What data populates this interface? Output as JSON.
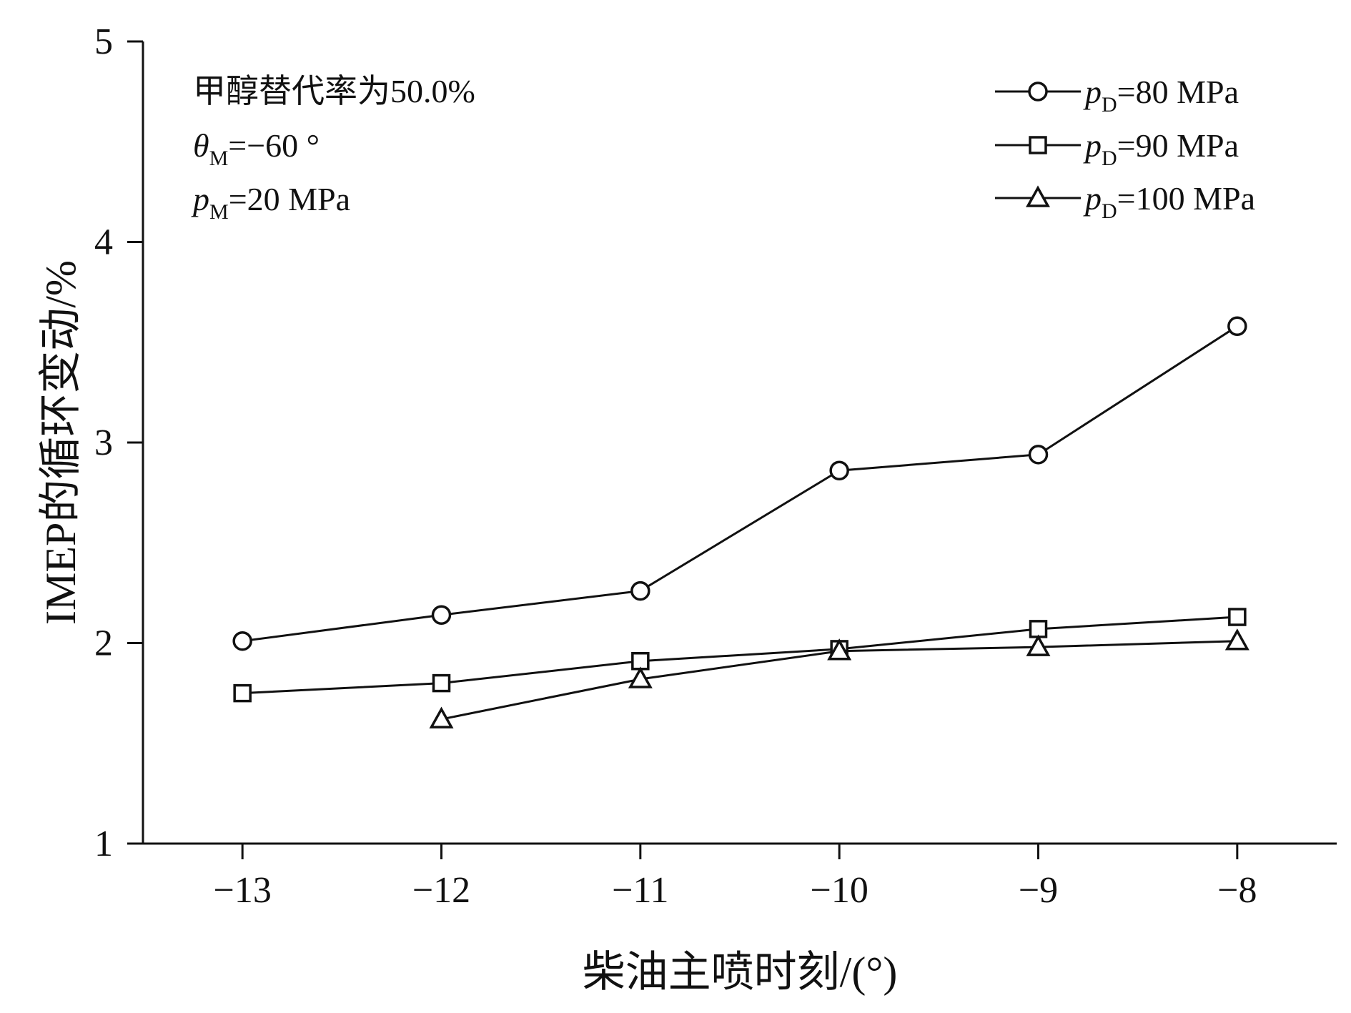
{
  "chart_data": {
    "type": "line",
    "xlabel": "柴油主喷时刻/(°)",
    "ylabel": "IMEP的循环变动/%",
    "xlim": [
      -13.5,
      -7.5
    ],
    "ylim": [
      1,
      5
    ],
    "xticks": [
      -13,
      -12,
      -11,
      -10,
      -9,
      -8
    ],
    "yticks": [
      1,
      2,
      3,
      4,
      5
    ],
    "grid": false,
    "legend_position": "top-right",
    "annotations": [
      {
        "key": "rate",
        "text": "甲醇替代率为50.0%"
      },
      {
        "key": "theta",
        "main": "θ",
        "sub": "M",
        "rest": "=−60 °"
      },
      {
        "key": "pm",
        "main": "p",
        "sub": "M",
        "rest": "=20 MPa"
      }
    ],
    "series": [
      {
        "name": "pD=80 MPa",
        "label_main": "p",
        "label_sub": "D",
        "label_rest": "=80 MPa",
        "marker": "circle",
        "x": [
          -13,
          -12,
          -11,
          -10,
          -9,
          -8
        ],
        "y": [
          2.01,
          2.14,
          2.26,
          2.86,
          2.94,
          3.58
        ]
      },
      {
        "name": "pD=90 MPa",
        "label_main": "p",
        "label_sub": "D",
        "label_rest": "=90 MPa",
        "marker": "square",
        "x": [
          -13,
          -12,
          -11,
          -10,
          -9,
          -8
        ],
        "y": [
          1.75,
          1.8,
          1.91,
          1.97,
          2.07,
          2.13
        ]
      },
      {
        "name": "pD=100 MPa",
        "label_main": "p",
        "label_sub": "D",
        "label_rest": "=100 MPa",
        "marker": "triangle",
        "x": [
          -12,
          -11,
          -10,
          -9,
          -8
        ],
        "y": [
          1.62,
          1.82,
          1.96,
          1.98,
          2.01
        ]
      }
    ]
  }
}
